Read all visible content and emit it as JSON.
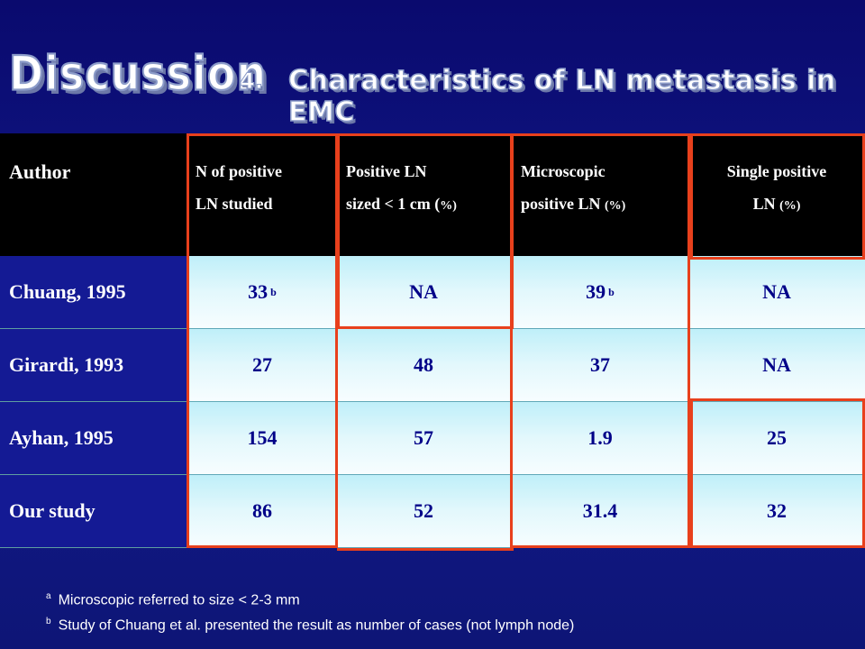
{
  "title": {
    "main": "Discussion",
    "number": "4.",
    "subtitle": "Characteristics of LN metastasis in EMC"
  },
  "table": {
    "header": {
      "author": "Author",
      "col1_line1": "N of positive",
      "col1_line2": "LN studied",
      "col2_line1": "Positive LN",
      "col2_line2": "sized < 1 cm (",
      "col2_unit": "%)",
      "col3_line1": "Microscopic",
      "col3_line2": "positive LN ",
      "col3_unit": "(%)",
      "col4_line1": "Single positive",
      "col4_line2": "LN ",
      "col4_unit": "(%)"
    },
    "rows": [
      {
        "author": "Chuang, 1995",
        "c1": "33",
        "c1_sup": "b",
        "c2": "NA",
        "c3": "39",
        "c3_sup": "b",
        "c4": "NA"
      },
      {
        "author": "Girardi, 1993",
        "c1": "27",
        "c2": "48",
        "c3": "37",
        "c4": "NA"
      },
      {
        "author": "Ayhan, 1995",
        "c1": "154",
        "c2": "57",
        "c3": "1.9",
        "c4": "25"
      },
      {
        "author": "Our study",
        "c1": "86",
        "c2": "52",
        "c3": "31.4",
        "c4": "32"
      }
    ]
  },
  "footnotes": {
    "a_mark": "a",
    "a_text": "Microscopic referred to size < 2-3 mm",
    "b_mark": "b",
    "b_text": "Study of Chuang et al. presented the result as number of cases (not lymph node)"
  },
  "colors": {
    "background": "#0a0a6e",
    "header_bg": "#000000",
    "highlight_outline": "#e8401c",
    "data_text": "#000088"
  }
}
